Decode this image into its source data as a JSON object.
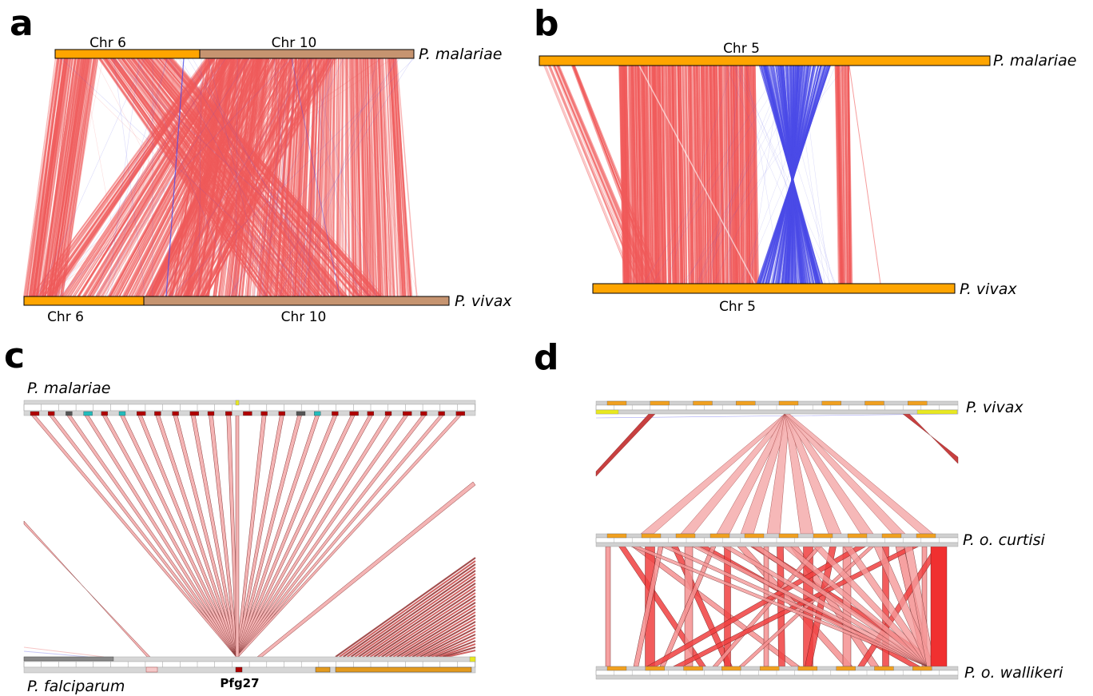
{
  "panels": {
    "a": {
      "label": "a",
      "top_chromosomes": [
        "Chr 6",
        "Chr 10"
      ],
      "bottom_chromosomes": [
        "Chr 6",
        "Chr 10"
      ],
      "top_species": "P. malariae",
      "bottom_species": "P. vivax"
    },
    "b": {
      "label": "b",
      "top_chromosome": "Chr 5",
      "bottom_chromosome": "Chr 5",
      "top_species": "P. malariae",
      "bottom_species": "P. vivax"
    },
    "c": {
      "label": "c",
      "top_species": "P. malariae",
      "bottom_species": "P. falciparum",
      "gene_label": "Pfg27"
    },
    "d": {
      "label": "d",
      "species": [
        "P. vivax",
        "P. o. curtisi",
        "P. o. wallikeri"
      ]
    }
  },
  "colors": {
    "forward_match": "#f05a5a",
    "reverse_match": "#4a4ae8",
    "chromosome_primary": "#ffa500",
    "chromosome_secondary": "#c69470"
  }
}
